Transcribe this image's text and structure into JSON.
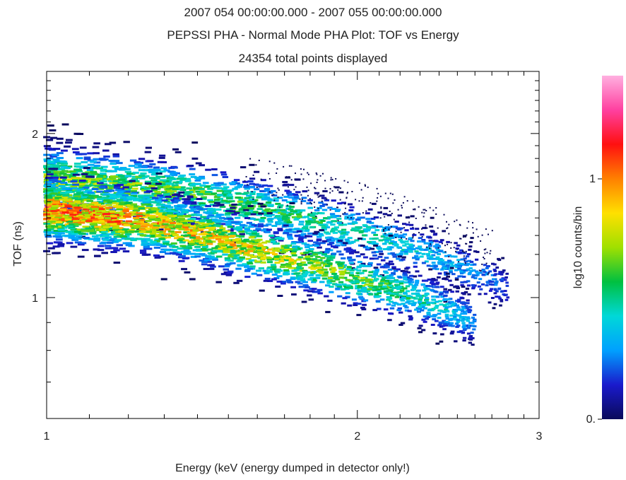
{
  "title_lines": [
    "2007 054 00:00:00.000 - 2007 055 00:00:00.000",
    "PEPSSI PHA - Normal Mode PHA Plot: TOF vs Energy",
    "24354 total points displayed"
  ],
  "chart_data": {
    "type": "heatmap",
    "title": "PEPSSI PHA - Normal Mode PHA Plot: TOF vs Energy",
    "time_range": "2007 054 00:00:00.000 - 2007 055 00:00:00.000",
    "total_points_text": "24354 total points displayed",
    "xlabel": "Energy (keV (energy dumped in detector only!)",
    "ylabel": "TOF (ns)",
    "x_scale": "log",
    "y_scale": "log",
    "xlim": [
      1,
      3
    ],
    "ylim": [
      0.6,
      2.6
    ],
    "x_tick_labels": [
      {
        "value": 1,
        "label": "1"
      },
      {
        "value": 2,
        "label": "2"
      },
      {
        "value": 3,
        "label": "3"
      }
    ],
    "y_tick_labels": [
      {
        "value": 1,
        "label": "1"
      },
      {
        "value": 2,
        "label": "2"
      }
    ],
    "colorbar": {
      "label": "log10 counts/bin",
      "range": [
        0,
        2
      ],
      "tick_labels": [
        {
          "value": 0,
          "label": "0."
        },
        {
          "value": 1,
          "label": "1"
        }
      ],
      "colormap": [
        "#0a0a5a",
        "#1a1acc",
        "#00a0ff",
        "#00d8d8",
        "#00c040",
        "#a0e000",
        "#ffe000",
        "#ff8000",
        "#ff1010",
        "#ff40a0",
        "#ffb0e0"
      ]
    },
    "series": [
      {
        "name": "",
        "centerline": [
          [
            1.0,
            1.65
          ],
          [
            1.3,
            1.58
          ],
          [
            1.6,
            1.46
          ],
          [
            2.0,
            1.32
          ],
          [
            2.4,
            1.18
          ],
          [
            2.8,
            1.04
          ]
        ],
        "peak_log_counts": 1.1
      },
      {
        "name": "",
        "centerline": [
          [
            1.0,
            1.45
          ],
          [
            1.25,
            1.38
          ],
          [
            1.6,
            1.22
          ],
          [
            2.0,
            1.08
          ],
          [
            2.3,
            1.0
          ],
          [
            2.6,
            0.9
          ]
        ],
        "peak_log_counts": 1.6
      }
    ],
    "grid": false
  }
}
